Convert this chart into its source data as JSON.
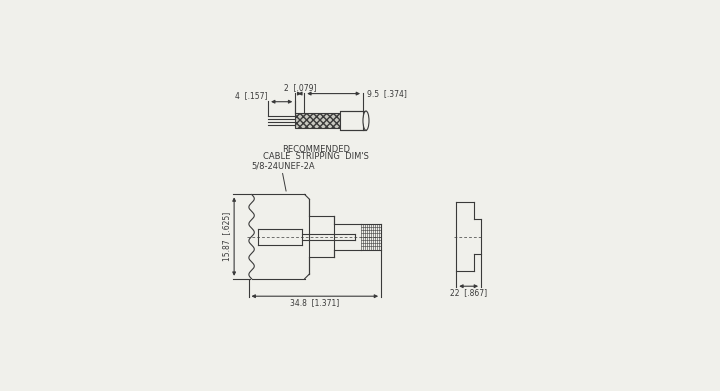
{
  "bg_color": "#f0f0eb",
  "line_color": "#3a3a3a",
  "lw": 0.8,
  "top_cable": {
    "dim_label_4": "4  [.157]",
    "dim_label_2": "2  [.079]",
    "dim_label_9": "9.5  [.374]",
    "caption_line1": "RECOMMENDED",
    "caption_line2": "CABLE  STRIPPING  DIM'S"
  },
  "main_connector": {
    "label_thread": "5/8-24UNEF-2A",
    "dim_label_w": "34.8  [1.371]",
    "dim_label_h": "15.87  [.625]"
  },
  "side_view": {
    "dim_label": "22  [.867]"
  }
}
